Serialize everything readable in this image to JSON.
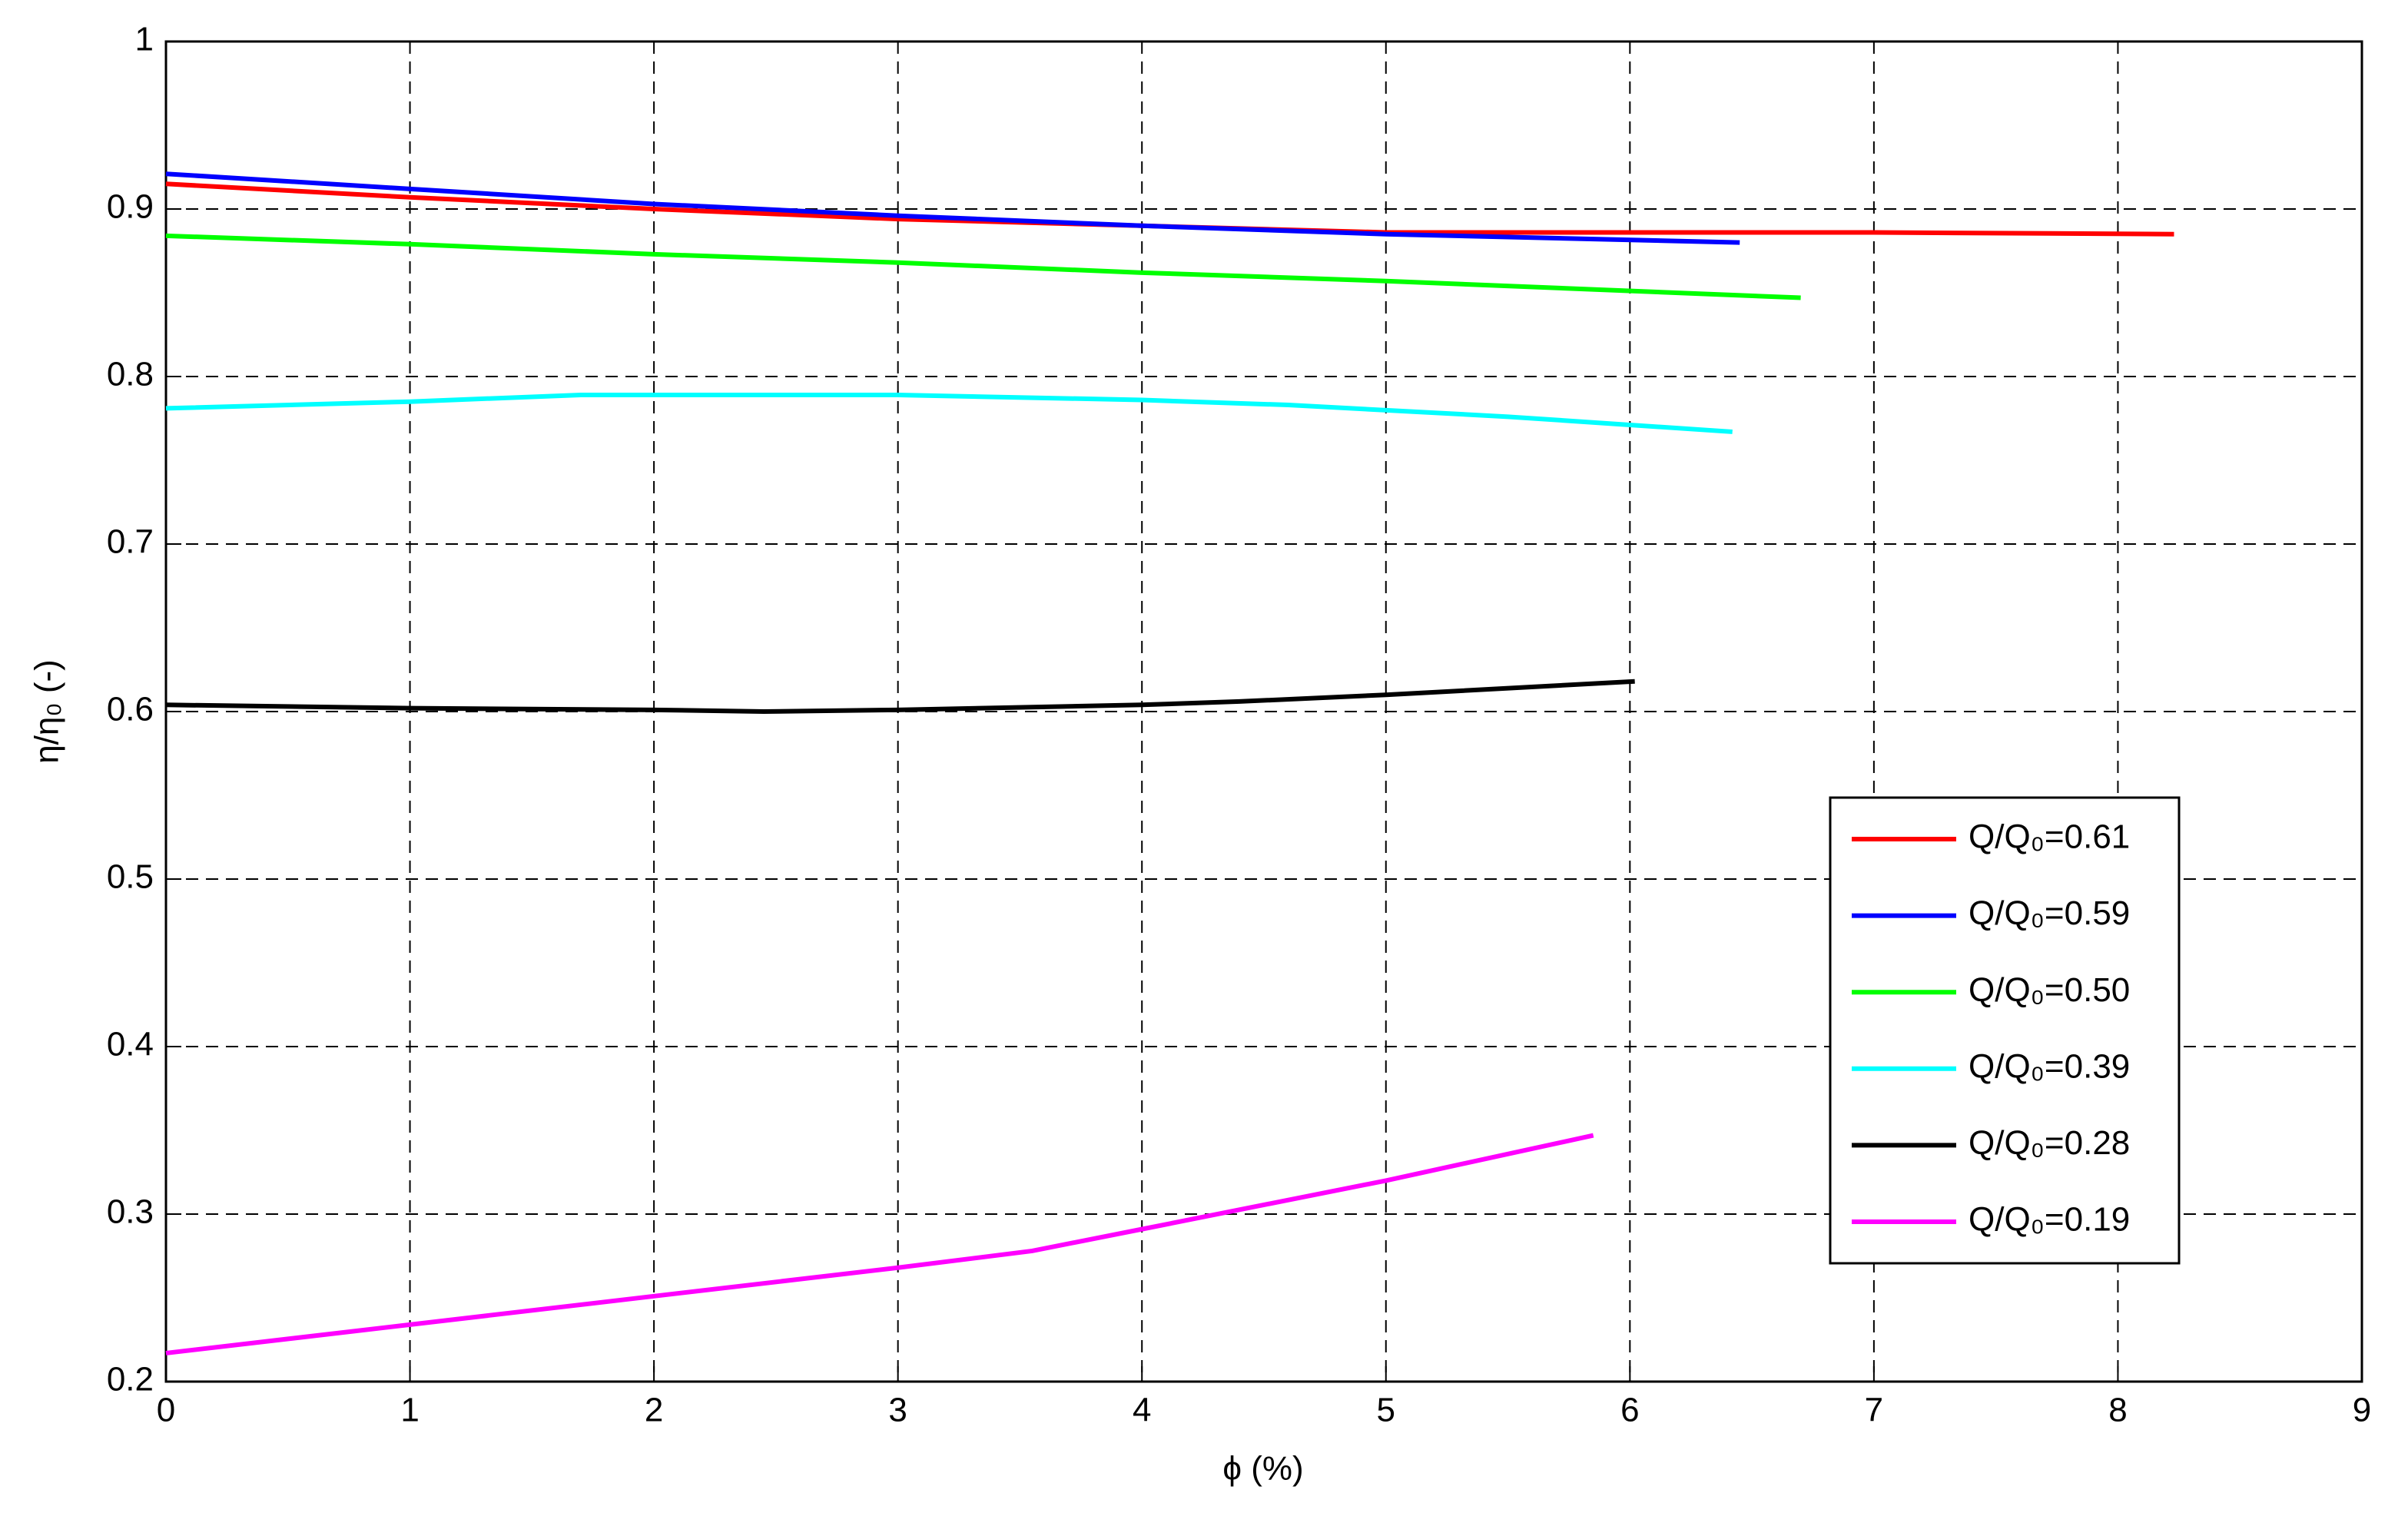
{
  "chart_data": {
    "type": "line",
    "xlabel": "ϕ (%)",
    "ylabel": "η/η₀ (-)",
    "xlim": [
      0,
      9
    ],
    "xticks": [
      0,
      1,
      2,
      3,
      4,
      5,
      6,
      7,
      8,
      9
    ],
    "ylim": [
      0.2,
      1
    ],
    "yticks": [
      0.2,
      0.3,
      0.4,
      0.5,
      0.6,
      0.7,
      0.8,
      0.9,
      1
    ],
    "grid": true,
    "legend": "lower right",
    "series": [
      {
        "name": "Q/Q₀=0.61",
        "color": "#ff0000",
        "x": [
          0,
          1,
          2,
          3,
          4,
          5,
          6,
          7,
          8.23
        ],
        "values": [
          0.915,
          0.907,
          0.9,
          0.894,
          0.89,
          0.886,
          0.886,
          0.886,
          0.885
        ]
      },
      {
        "name": "Q/Q₀=0.59",
        "color": "#0000ff",
        "x": [
          0,
          1,
          2,
          3,
          4,
          5,
          6.45
        ],
        "values": [
          0.921,
          0.912,
          0.903,
          0.896,
          0.89,
          0.885,
          0.88
        ]
      },
      {
        "name": "Q/Q₀=0.50",
        "color": "#00ff00",
        "x": [
          0,
          1,
          2,
          3,
          4,
          5,
          6.7
        ],
        "values": [
          0.884,
          0.879,
          0.873,
          0.868,
          0.862,
          0.857,
          0.847
        ]
      },
      {
        "name": "Q/Q₀=0.39",
        "color": "#00ffff",
        "x": [
          0,
          1,
          1.7,
          3,
          4,
          4.6,
          5.5,
          6.42
        ],
        "values": [
          0.781,
          0.785,
          0.789,
          0.789,
          0.786,
          0.783,
          0.776,
          0.767
        ]
      },
      {
        "name": "Q/Q₀=0.28",
        "color": "#000000",
        "x": [
          0,
          1,
          2,
          2.45,
          3,
          4,
          4.4,
          5,
          6.02
        ],
        "values": [
          0.604,
          0.602,
          0.601,
          0.6,
          0.601,
          0.604,
          0.606,
          0.61,
          0.618
        ]
      },
      {
        "name": "Q/Q₀=0.19",
        "color": "#ff00ff",
        "x": [
          0,
          1,
          2,
          3,
          3.55,
          4,
          5,
          5.85
        ],
        "values": [
          0.217,
          0.234,
          0.251,
          0.268,
          0.278,
          0.291,
          0.32,
          0.347
        ]
      }
    ]
  }
}
